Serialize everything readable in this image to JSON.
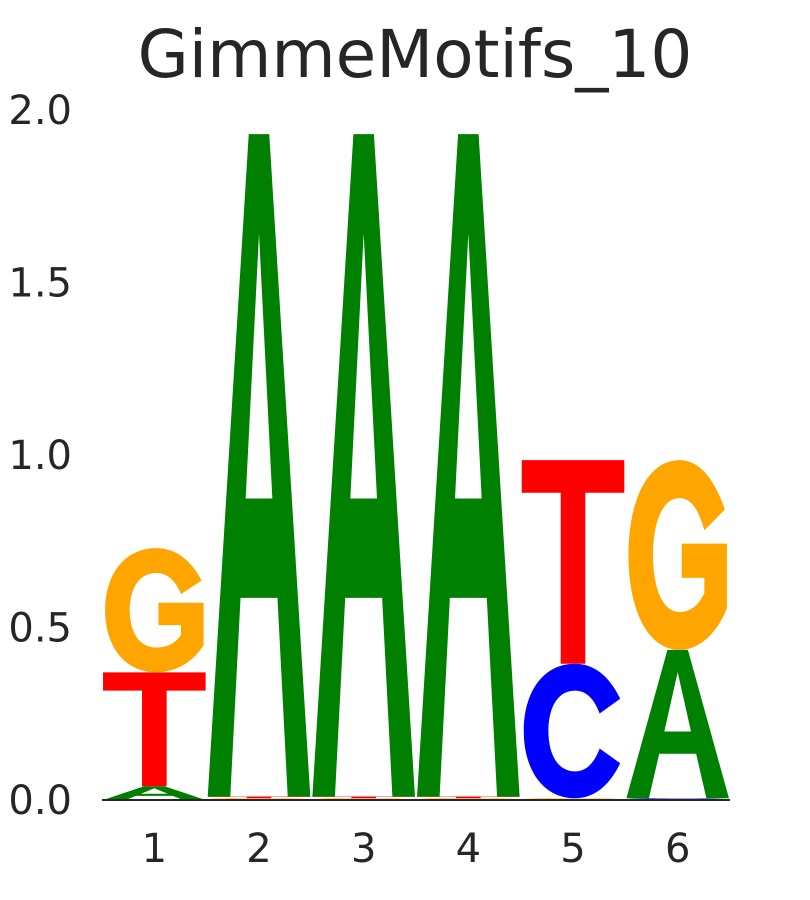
{
  "chart_data": {
    "type": "sequence-logo",
    "title": "GimmeMotifs_10",
    "xlabel": "",
    "ylabel": "",
    "ylim": [
      0,
      2
    ],
    "yticks": [
      "0.0",
      "0.5",
      "1.0",
      "1.5",
      "2.0"
    ],
    "positions": [
      "1",
      "2",
      "3",
      "4",
      "5",
      "6"
    ],
    "grid": false,
    "colors": {
      "A": "#008000",
      "C": "#0000ff",
      "G": "#ffa500",
      "T": "#ff0000"
    },
    "stacks": [
      [
        {
          "base": "A",
          "height": 0.04
        },
        {
          "base": "T",
          "height": 0.33
        },
        {
          "base": "G",
          "height": 0.36
        }
      ],
      [
        {
          "base": "G",
          "height": 0.005
        },
        {
          "base": "T",
          "height": 0.005
        },
        {
          "base": "A",
          "height": 1.92
        }
      ],
      [
        {
          "base": "G",
          "height": 0.005
        },
        {
          "base": "T",
          "height": 0.005
        },
        {
          "base": "A",
          "height": 1.92
        }
      ],
      [
        {
          "base": "G",
          "height": 0.005
        },
        {
          "base": "T",
          "height": 0.005
        },
        {
          "base": "A",
          "height": 1.92
        }
      ],
      [
        {
          "base": "G",
          "height": 0.005
        },
        {
          "base": "C",
          "height": 0.39
        },
        {
          "base": "T",
          "height": 0.59
        }
      ],
      [
        {
          "base": "C",
          "height": 0.005
        },
        {
          "base": "A",
          "height": 0.43
        },
        {
          "base": "G",
          "height": 0.55
        }
      ]
    ]
  }
}
